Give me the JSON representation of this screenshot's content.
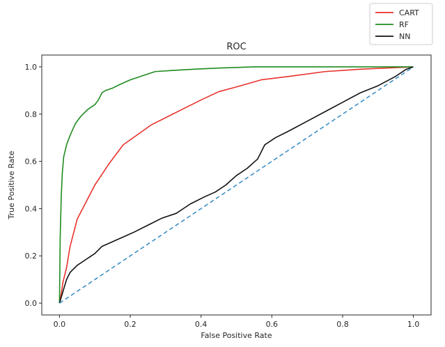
{
  "chart_data": {
    "type": "line",
    "title": "ROC",
    "xlabel": "False Positive Rate",
    "ylabel": "True Positive Rate",
    "xlim": [
      -0.05,
      1.05
    ],
    "ylim": [
      -0.05,
      1.05
    ],
    "xticks": [
      0.0,
      0.2,
      0.4,
      0.6,
      0.8,
      1.0
    ],
    "yticks": [
      0.0,
      0.2,
      0.4,
      0.6,
      0.8,
      1.0
    ],
    "xtick_labels": [
      "0.0",
      "0.2",
      "0.4",
      "0.6",
      "0.8",
      "1.0"
    ],
    "ytick_labels": [
      "0.0",
      "0.2",
      "0.4",
      "0.6",
      "0.8",
      "1.0"
    ],
    "grid": false,
    "legend_position": "top-right, outside above plot",
    "series": [
      {
        "name": "CART",
        "color": "#e8312b",
        "dashed": false,
        "points": [
          [
            0.0,
            0.0
          ],
          [
            0.005,
            0.04
          ],
          [
            0.01,
            0.09
          ],
          [
            0.02,
            0.15
          ],
          [
            0.03,
            0.24
          ],
          [
            0.05,
            0.355
          ],
          [
            0.1,
            0.5
          ],
          [
            0.14,
            0.59
          ],
          [
            0.18,
            0.67
          ],
          [
            0.26,
            0.755
          ],
          [
            0.32,
            0.8
          ],
          [
            0.4,
            0.86
          ],
          [
            0.45,
            0.895
          ],
          [
            0.5,
            0.915
          ],
          [
            0.57,
            0.945
          ],
          [
            0.65,
            0.96
          ],
          [
            0.75,
            0.98
          ],
          [
            0.85,
            0.99
          ],
          [
            1.0,
            1.0
          ]
        ]
      },
      {
        "name": "RF",
        "color": "#1f8b1f",
        "dashed": false,
        "points": [
          [
            0.0,
            0.0
          ],
          [
            0.002,
            0.28
          ],
          [
            0.005,
            0.45
          ],
          [
            0.008,
            0.55
          ],
          [
            0.012,
            0.62
          ],
          [
            0.02,
            0.67
          ],
          [
            0.03,
            0.71
          ],
          [
            0.045,
            0.76
          ],
          [
            0.06,
            0.79
          ],
          [
            0.08,
            0.82
          ],
          [
            0.1,
            0.84
          ],
          [
            0.11,
            0.86
          ],
          [
            0.12,
            0.89
          ],
          [
            0.13,
            0.9
          ],
          [
            0.15,
            0.91
          ],
          [
            0.17,
            0.925
          ],
          [
            0.2,
            0.945
          ],
          [
            0.23,
            0.96
          ],
          [
            0.27,
            0.98
          ],
          [
            0.32,
            0.985
          ],
          [
            0.38,
            0.99
          ],
          [
            0.45,
            0.995
          ],
          [
            0.55,
            1.0
          ],
          [
            1.0,
            1.0
          ]
        ]
      },
      {
        "name": "NN",
        "color": "#111111",
        "dashed": false,
        "points": [
          [
            0.0,
            0.0
          ],
          [
            0.01,
            0.05
          ],
          [
            0.02,
            0.1
          ],
          [
            0.03,
            0.13
          ],
          [
            0.05,
            0.16
          ],
          [
            0.08,
            0.19
          ],
          [
            0.1,
            0.21
          ],
          [
            0.12,
            0.24
          ],
          [
            0.15,
            0.26
          ],
          [
            0.18,
            0.28
          ],
          [
            0.21,
            0.3
          ],
          [
            0.25,
            0.33
          ],
          [
            0.29,
            0.36
          ],
          [
            0.33,
            0.38
          ],
          [
            0.37,
            0.42
          ],
          [
            0.41,
            0.45
          ],
          [
            0.44,
            0.47
          ],
          [
            0.47,
            0.5
          ],
          [
            0.5,
            0.54
          ],
          [
            0.53,
            0.57
          ],
          [
            0.56,
            0.61
          ],
          [
            0.58,
            0.67
          ],
          [
            0.61,
            0.7
          ],
          [
            0.65,
            0.73
          ],
          [
            0.7,
            0.77
          ],
          [
            0.75,
            0.81
          ],
          [
            0.8,
            0.85
          ],
          [
            0.85,
            0.89
          ],
          [
            0.9,
            0.92
          ],
          [
            0.95,
            0.96
          ],
          [
            0.98,
            0.99
          ],
          [
            1.0,
            1.0
          ]
        ]
      },
      {
        "color": "#3b8fc4",
        "dashed": true,
        "points": [
          [
            0.0,
            0.0
          ],
          [
            1.0,
            1.0
          ]
        ]
      }
    ]
  }
}
